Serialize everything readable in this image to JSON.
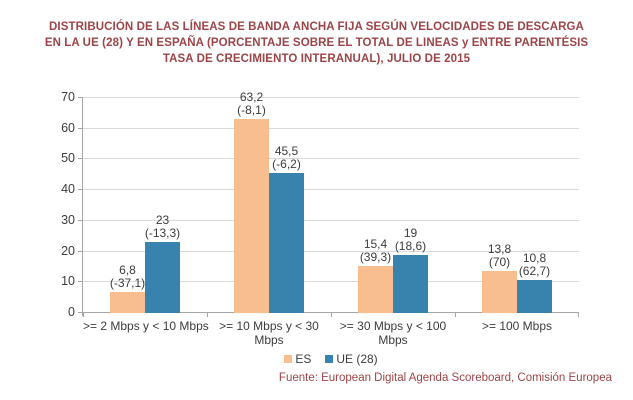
{
  "header": {
    "title_lines": [
      "DISTRIBUCIÓN DE LAS LÍNEAS DE BANDA ANCHA FIJA SEGÚN VELOCIDADES DE DESCARGA",
      "EN LA UE (28) Y EN ESPAÑA (PORCENTAJE SOBRE EL TOTAL DE LINEAS y ENTRE PARENTÉSIS",
      "TASA DE CRECIMIENTO INTERANUAL), JULIO DE 2015"
    ]
  },
  "footer": {
    "source": "Fuente: European Digital Agenda Scoreboard, Comisión Europea"
  },
  "colors": {
    "es_bar": "#F9BE8F",
    "ue_bar": "#3783AE",
    "title_text": "#9C4449",
    "gridline": "#D9D9D9",
    "axis": "#A6A6A6",
    "label_text": "#3C3C3C"
  },
  "chart_data": {
    "type": "bar",
    "title": "DISTRIBUCIÓN DE LAS LÍNEAS DE BANDA ANCHA FIJA SEGÚN VELOCIDADES DE DESCARGA EN LA UE (28) Y EN ESPAÑA (PORCENTAJE SOBRE EL TOTAL DE LINEAS y ENTRE PARENTÉSIS TASA DE CRECIMIENTO INTERANUAL), JULIO DE 2015",
    "xlabel": "",
    "ylabel": "",
    "ylim": [
      0,
      70
    ],
    "ytick_step": 10,
    "grid": true,
    "legend_position": "bottom",
    "categories": [
      ">= 2 Mbps y < 10 Mbps",
      ">= 10 Mbps y < 30 Mbps",
      ">= 30 Mbps y < 100 Mbps",
      ">= 100 Mbps"
    ],
    "category_lines": [
      [
        ">= 2 Mbps y < 10 Mbps"
      ],
      [
        ">= 10 Mbps y < 30",
        "Mbps"
      ],
      [
        ">= 30 Mbps y < 100",
        "Mbps"
      ],
      [
        ">= 100 Mbps"
      ]
    ],
    "series": [
      {
        "name": "ES",
        "key": "es",
        "color": "#F9BE8F",
        "values": [
          6.8,
          63.2,
          15.4,
          13.8
        ],
        "value_labels": [
          "6,8",
          "63,2",
          "15,4",
          "13,8"
        ],
        "growth_labels": [
          "(-37,1)",
          "(-8,1)",
          "(39,3)",
          "(70)"
        ]
      },
      {
        "name": "UE (28)",
        "key": "ue28",
        "color": "#3783AE",
        "values": [
          23,
          45.5,
          19,
          10.8
        ],
        "value_labels": [
          "23",
          "45,5",
          "19",
          "10,8"
        ],
        "growth_labels": [
          "(-13,3)",
          "(-6,2)",
          "(18,6)",
          "(62,7)"
        ]
      }
    ]
  }
}
